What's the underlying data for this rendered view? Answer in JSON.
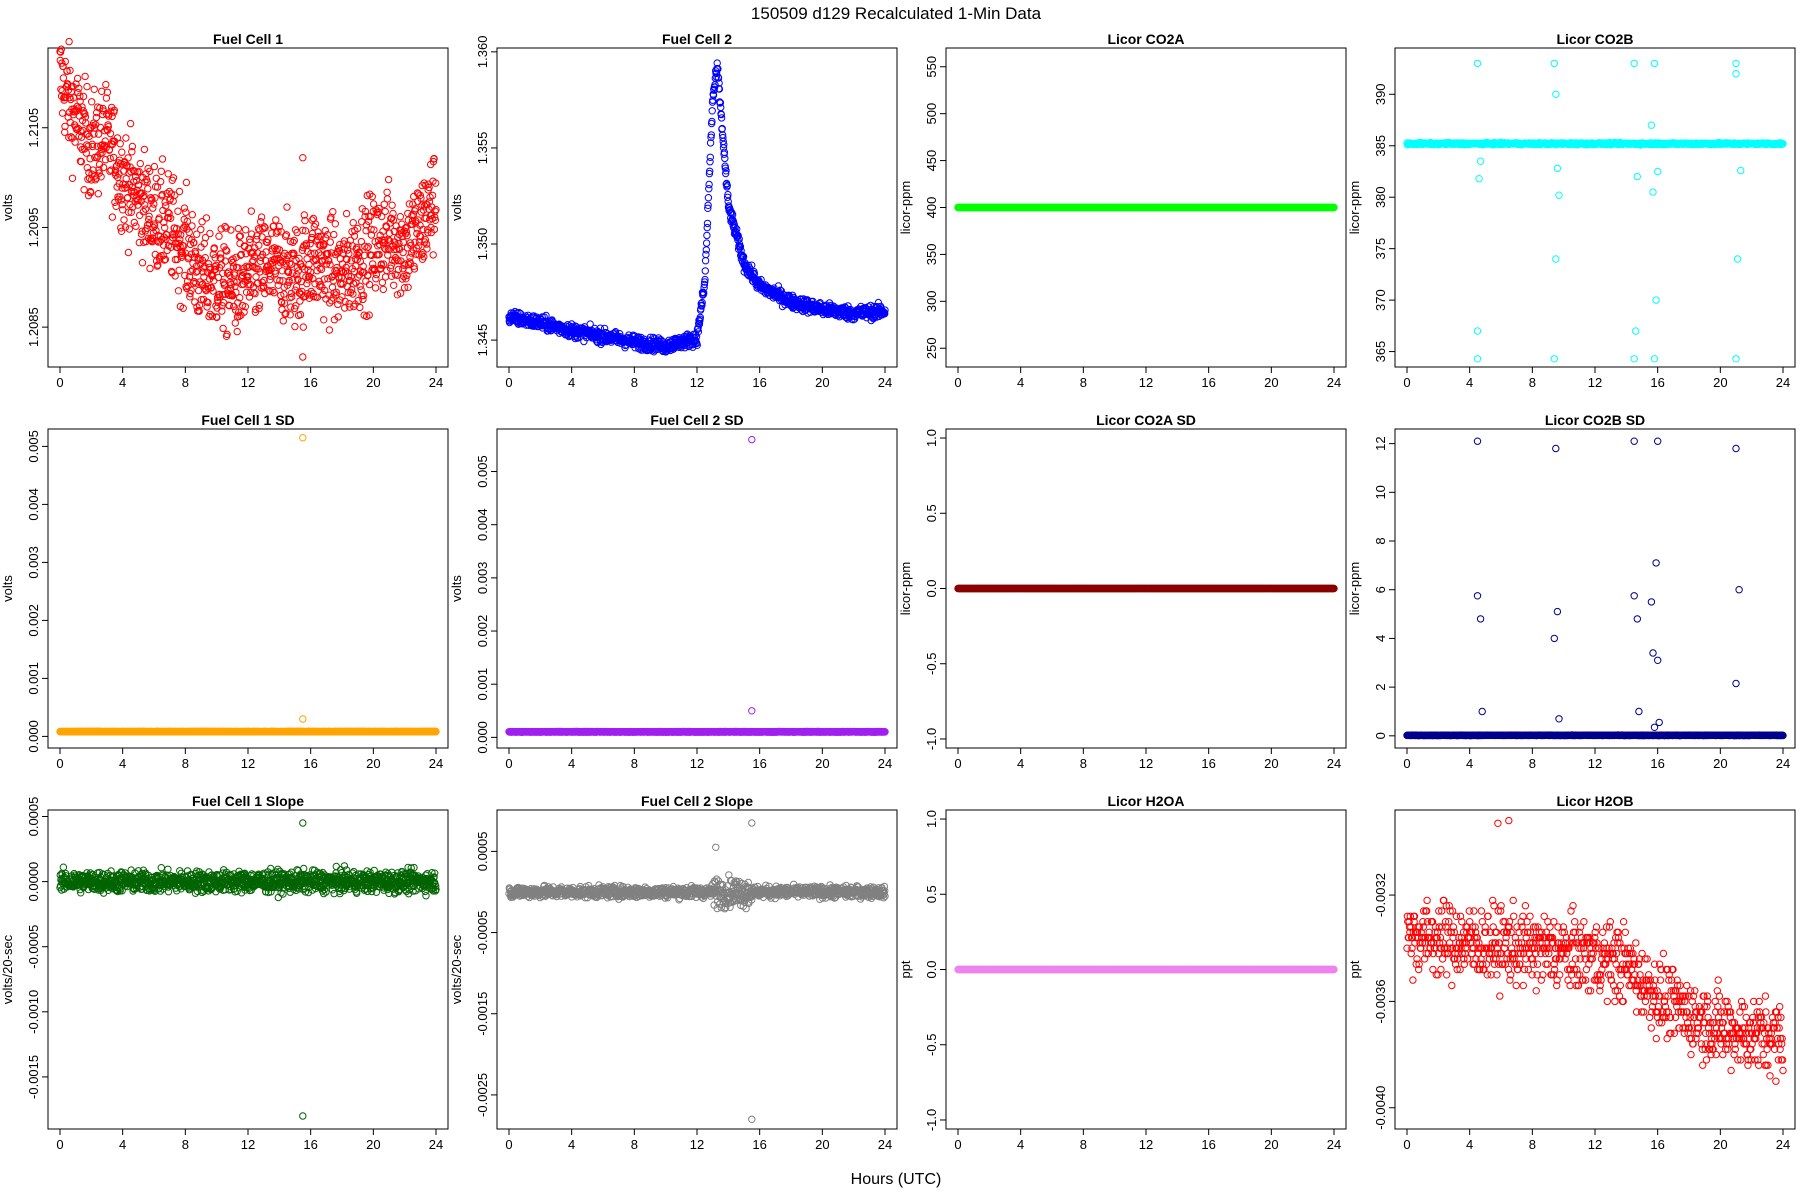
{
  "figure": {
    "title": "150509    d129    Recalculated 1-Min Data",
    "xlabel": "Hours (UTC)"
  },
  "chart_data": [
    {
      "type": "scatter",
      "title": "Fuel Cell 1",
      "ylabel": "volts",
      "color": "#ff0000",
      "xlim": [
        0,
        24
      ],
      "ylim": [
        1.2081,
        1.2113
      ],
      "xticks": [
        "0",
        "4",
        "8",
        "12",
        "16",
        "20",
        "24"
      ],
      "yticks": [
        [
          "1.2085",
          1.2085
        ],
        [
          "1.2095",
          1.2095
        ],
        [
          "1.2105",
          1.2105
        ]
      ],
      "series": [
        {
          "x": [
            0,
            1,
            2,
            3,
            4,
            5,
            6,
            7,
            8,
            9,
            10,
            11,
            12,
            13,
            14,
            15,
            16,
            17,
            18,
            19,
            20,
            21,
            22,
            23,
            24
          ],
          "y": [
            1.211,
            1.2106,
            1.2103,
            1.2104,
            1.21,
            1.2098,
            1.2096,
            1.2095,
            1.2093,
            1.209,
            1.209,
            1.2089,
            1.209,
            1.2091,
            1.2091,
            1.209,
            1.2092,
            1.2091,
            1.209,
            1.2092,
            1.2093,
            1.2094,
            1.2093,
            1.2095,
            1.2098
          ]
        }
      ],
      "outliers": [
        [
          15.5,
          1.2102
        ],
        [
          15.5,
          1.2082
        ]
      ]
    },
    {
      "type": "scatter",
      "title": "Fuel Cell 2",
      "ylabel": "volts",
      "color": "#0000ff",
      "xlim": [
        0,
        24
      ],
      "ylim": [
        1.3436,
        1.3602
      ],
      "xticks": [
        "0",
        "4",
        "8",
        "12",
        "16",
        "20",
        "24"
      ],
      "yticks": [
        [
          "1.345",
          1.345
        ],
        [
          "1.350",
          1.35
        ],
        [
          "1.355",
          1.355
        ],
        [
          "1.360",
          1.36
        ]
      ],
      "series": [
        {
          "x": [
            0,
            2,
            4,
            6,
            8,
            10,
            12,
            12.5,
            13,
            13.3,
            14,
            15,
            16,
            18,
            20,
            22,
            24
          ],
          "y": [
            1.3462,
            1.3459,
            1.3455,
            1.3452,
            1.3449,
            1.3447,
            1.3451,
            1.348,
            1.3575,
            1.3592,
            1.352,
            1.349,
            1.3478,
            1.347,
            1.3466,
            1.3464,
            1.3465
          ]
        }
      ],
      "outliers": []
    },
    {
      "type": "scatter",
      "title": "Licor CO2A",
      "ylabel": "licor-ppm",
      "color": "#00ff00",
      "xlim": [
        0,
        24
      ],
      "ylim": [
        230,
        570
      ],
      "xticks": [
        "0",
        "4",
        "8",
        "12",
        "16",
        "20",
        "24"
      ],
      "yticks": [
        [
          "250",
          250
        ],
        [
          "300",
          300
        ],
        [
          "350",
          350
        ],
        [
          "400",
          400
        ],
        [
          "450",
          450
        ],
        [
          "500",
          500
        ],
        [
          "550",
          550
        ]
      ],
      "series": [
        {
          "x": [
            0,
            24
          ],
          "y": [
            400,
            400
          ]
        }
      ],
      "outliers": []
    },
    {
      "type": "scatter",
      "title": "Licor CO2B",
      "ylabel": "licor-ppm",
      "color": "#00ffff",
      "xlim": [
        0,
        24
      ],
      "ylim": [
        363.5,
        394.5
      ],
      "xticks": [
        "0",
        "4",
        "8",
        "12",
        "16",
        "20",
        "24"
      ],
      "yticks": [
        [
          "365",
          365
        ],
        [
          "370",
          370
        ],
        [
          "375",
          375
        ],
        [
          "380",
          380
        ],
        [
          "385",
          385
        ],
        [
          "390",
          390
        ]
      ],
      "series": [
        {
          "x": [
            0,
            24
          ],
          "y": [
            385.2,
            385.2
          ]
        }
      ],
      "outliers": [
        [
          4.5,
          393
        ],
        [
          4.5,
          364.3
        ],
        [
          4.5,
          367
        ],
        [
          4.6,
          381.8
        ],
        [
          4.7,
          383.5
        ],
        [
          9.4,
          393
        ],
        [
          9.4,
          364.3
        ],
        [
          9.5,
          374
        ],
        [
          9.6,
          382.8
        ],
        [
          9.5,
          390
        ],
        [
          9.7,
          380.2
        ],
        [
          14.5,
          393
        ],
        [
          14.5,
          364.3
        ],
        [
          14.6,
          367
        ],
        [
          14.7,
          382
        ],
        [
          15.6,
          387
        ],
        [
          15.8,
          393
        ],
        [
          15.8,
          364.3
        ],
        [
          15.9,
          370
        ],
        [
          16.0,
          382.5
        ],
        [
          15.7,
          380.5
        ],
        [
          21.0,
          393
        ],
        [
          21.0,
          364.3
        ],
        [
          21.1,
          374
        ],
        [
          21.0,
          392
        ],
        [
          21.3,
          382.6
        ]
      ]
    },
    {
      "type": "scatter",
      "title": "Fuel Cell 1 SD",
      "ylabel": "volts",
      "color": "#ffa500",
      "xlim": [
        0,
        24
      ],
      "ylim": [
        -0.0002,
        0.0053
      ],
      "xticks": [
        "0",
        "4",
        "8",
        "12",
        "16",
        "20",
        "24"
      ],
      "yticks": [
        [
          "0.000",
          0
        ],
        [
          "0.001",
          0.001
        ],
        [
          "0.002",
          0.002
        ],
        [
          "0.003",
          0.003
        ],
        [
          "0.004",
          0.004
        ],
        [
          "0.005",
          0.005
        ]
      ],
      "series": [
        {
          "x": [
            0,
            24
          ],
          "y": [
            8e-05,
            8e-05
          ]
        }
      ],
      "outliers": [
        [
          15.5,
          0.00515
        ],
        [
          15.5,
          0.0003
        ]
      ]
    },
    {
      "type": "scatter",
      "title": "Fuel Cell 2 SD",
      "ylabel": "volts",
      "color": "#a020f0",
      "xlim": [
        0,
        24
      ],
      "ylim": [
        -0.0002,
        0.0058
      ],
      "xticks": [
        "0",
        "4",
        "8",
        "12",
        "16",
        "20",
        "24"
      ],
      "yticks": [
        [
          "0.000",
          0
        ],
        [
          "0.001",
          0.001
        ],
        [
          "0.002",
          0.002
        ],
        [
          "0.003",
          0.003
        ],
        [
          "0.004",
          0.004
        ],
        [
          "0.005",
          0.005
        ]
      ],
      "series": [
        {
          "x": [
            0,
            24
          ],
          "y": [
            0.0001,
            0.0001
          ]
        }
      ],
      "outliers": [
        [
          15.5,
          0.0056
        ],
        [
          15.5,
          0.0005
        ]
      ]
    },
    {
      "type": "scatter",
      "title": "Licor CO2A SD",
      "ylabel": "licor-ppm",
      "color": "#8b0000",
      "xlim": [
        0,
        24
      ],
      "ylim": [
        -1.06,
        1.06
      ],
      "xticks": [
        "0",
        "4",
        "8",
        "12",
        "16",
        "20",
        "24"
      ],
      "yticks": [
        [
          "-1.0",
          -1.0
        ],
        [
          "-0.5",
          -0.5
        ],
        [
          "0.0",
          0.0
        ],
        [
          "0.5",
          0.5
        ],
        [
          "1.0",
          1.0
        ]
      ],
      "series": [
        {
          "x": [
            0,
            24
          ],
          "y": [
            0,
            0
          ]
        }
      ],
      "outliers": []
    },
    {
      "type": "scatter",
      "title": "Licor CO2B SD",
      "ylabel": "licor-ppm",
      "color": "#00008b",
      "xlim": [
        0,
        24
      ],
      "ylim": [
        -0.5,
        12.6
      ],
      "xticks": [
        "0",
        "4",
        "8",
        "12",
        "16",
        "20",
        "24"
      ],
      "yticks": [
        [
          "0",
          0
        ],
        [
          "2",
          2
        ],
        [
          "4",
          4
        ],
        [
          "6",
          6
        ],
        [
          "8",
          8
        ],
        [
          "10",
          10
        ],
        [
          "12",
          12
        ]
      ],
      "series": [
        {
          "x": [
            0,
            24
          ],
          "y": [
            0.02,
            0.02
          ]
        }
      ],
      "outliers": [
        [
          4.5,
          12.1
        ],
        [
          4.5,
          5.75
        ],
        [
          4.7,
          4.8
        ],
        [
          4.8,
          1.0
        ],
        [
          9.5,
          11.8
        ],
        [
          9.4,
          4.0
        ],
        [
          9.6,
          5.1
        ],
        [
          9.7,
          0.7
        ],
        [
          14.5,
          12.1
        ],
        [
          14.5,
          5.75
        ],
        [
          14.7,
          4.8
        ],
        [
          14.8,
          1.0
        ],
        [
          15.6,
          5.5
        ],
        [
          15.7,
          3.4
        ],
        [
          15.9,
          7.1
        ],
        [
          16.0,
          3.1
        ],
        [
          16.1,
          0.55
        ],
        [
          15.8,
          0.35
        ],
        [
          16.0,
          12.1
        ],
        [
          21.0,
          11.8
        ],
        [
          21.2,
          6.0
        ],
        [
          21.0,
          2.15
        ]
      ]
    },
    {
      "type": "scatter",
      "title": "Fuel Cell 1 Slope",
      "ylabel": "volts/20-sec",
      "color": "#006400",
      "xlim": [
        0,
        24
      ],
      "ylim": [
        -0.0019,
        0.00055
      ],
      "xticks": [
        "0",
        "4",
        "8",
        "12",
        "16",
        "20",
        "24"
      ],
      "yticks": [
        [
          "-0.0015",
          -0.0015
        ],
        [
          "-0.0010",
          -0.001
        ],
        [
          "-0.0005",
          -0.0005
        ],
        [
          "0.0000",
          0
        ],
        [
          "0.0005",
          0.0005
        ]
      ],
      "series": [
        {
          "x": [
            0,
            24
          ],
          "y": [
            0,
            0
          ]
        }
      ],
      "outliers": [
        [
          15.5,
          0.00045
        ],
        [
          15.5,
          -0.0018
        ]
      ]
    },
    {
      "type": "scatter",
      "title": "Fuel Cell 2 Slope",
      "ylabel": "volts/20-sec",
      "color": "#808080",
      "xlim": [
        0,
        24
      ],
      "ylim": [
        -0.00292,
        0.00101
      ],
      "xticks": [
        "0",
        "4",
        "8",
        "12",
        "16",
        "20",
        "24"
      ],
      "yticks": [
        [
          "-0.0025",
          -0.0025
        ],
        [
          "-0.0015",
          -0.0015
        ],
        [
          "-0.0005",
          -0.0005
        ],
        [
          "0.0005",
          0.0005
        ]
      ],
      "series": [
        {
          "x": [
            0,
            24
          ],
          "y": [
            0,
            0
          ]
        }
      ],
      "outliers": [
        [
          15.5,
          0.00085
        ],
        [
          15.5,
          -0.0028
        ],
        [
          13.2,
          0.00055
        ]
      ]
    },
    {
      "type": "scatter",
      "title": "Licor H2OA",
      "ylabel": "ppt",
      "color": "#ee82ee",
      "xlim": [
        0,
        24
      ],
      "ylim": [
        -1.06,
        1.06
      ],
      "xticks": [
        "0",
        "4",
        "8",
        "12",
        "16",
        "20",
        "24"
      ],
      "yticks": [
        [
          "-1.0",
          -1.0
        ],
        [
          "-0.5",
          -0.5
        ],
        [
          "0.0",
          0.0
        ],
        [
          "0.5",
          0.5
        ],
        [
          "1.0",
          1.0
        ]
      ],
      "series": [
        {
          "x": [
            0,
            24
          ],
          "y": [
            0,
            0
          ]
        }
      ],
      "outliers": []
    },
    {
      "type": "scatter",
      "title": "Licor H2OB",
      "ylabel": "ppt",
      "color": "#ff0000",
      "xlim": [
        0,
        24
      ],
      "ylim": [
        -0.00408,
        -0.00288
      ],
      "xticks": [
        "0",
        "4",
        "8",
        "12",
        "16",
        "20",
        "24"
      ],
      "yticks": [
        [
          "-0.0040",
          -0.004
        ],
        [
          "-0.0036",
          -0.0036
        ],
        [
          "-0.0032",
          -0.0032
        ]
      ],
      "series": [
        {
          "x": [
            0,
            4,
            8,
            12,
            14,
            16,
            18,
            20,
            22,
            24
          ],
          "y": [
            -0.00335,
            -0.00338,
            -0.0034,
            -0.00343,
            -0.00346,
            -0.00358,
            -0.00365,
            -0.0037,
            -0.00372,
            -0.00374
          ]
        }
      ],
      "outliers": [
        [
          6.5,
          -0.00292
        ],
        [
          5.8,
          -0.00293
        ]
      ]
    }
  ]
}
